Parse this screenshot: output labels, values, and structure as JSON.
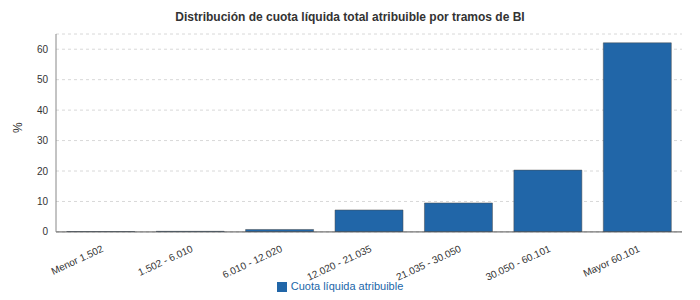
{
  "chart_data": {
    "type": "bar",
    "title": "Distribución de cuota líquida total atribuible por tramos de BI",
    "y_label": "%",
    "categories": [
      "Menor 1.502",
      "1.502 - 6.010",
      "6.010 - 12.020",
      "12.020 - 21.035",
      "21.035 - 30.050",
      "30.050 - 60.101",
      "Mayor 60.101"
    ],
    "series": [
      {
        "name": "Cuota líquida atribuible",
        "color": "#2166a8",
        "values": [
          0.1,
          0.2,
          0.8,
          7.2,
          9.5,
          20.3,
          62.1
        ]
      }
    ],
    "ylim": [
      0,
      65
    ],
    "yticks": [
      0,
      10,
      20,
      30,
      40,
      50,
      60
    ],
    "grid": true,
    "legend": "bottom"
  }
}
